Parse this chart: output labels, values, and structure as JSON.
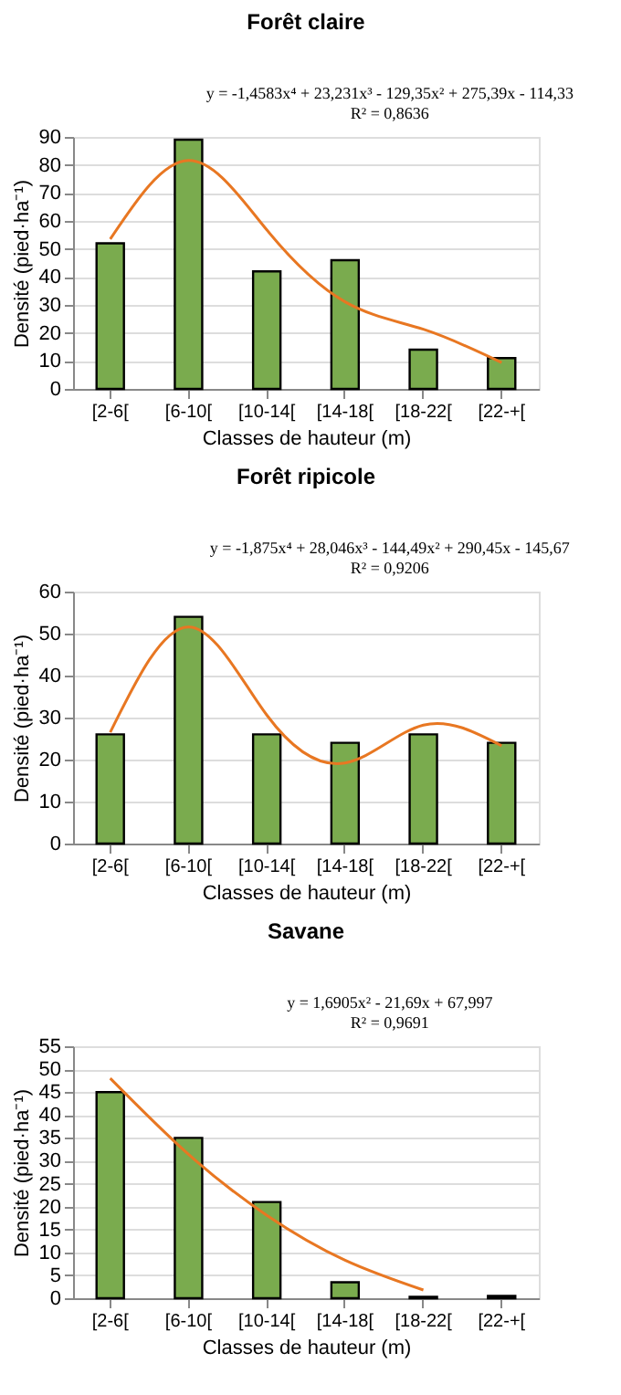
{
  "chart_data": [
    {
      "type": "bar",
      "title": "Forêt claire",
      "xlabel": "Classes de hauteur (m)",
      "ylabel": "Densité (pied·ha⁻¹)",
      "categories": [
        "[2-6[",
        "[6-10[",
        "[10-14[",
        "[14-18[",
        "[18-22[",
        "[22-+["
      ],
      "series": [
        {
          "color": "#7aab4e",
          "values": [
            52,
            89,
            42,
            46,
            14,
            11
          ]
        },
        {
          "type": "line",
          "color": "#e87722",
          "values": [
            53.5,
            81.6,
            56.8,
            31.1,
            21.3,
            9.4
          ]
        }
      ],
      "ylim": [
        0,
        90
      ],
      "yticks": [
        0,
        10,
        20,
        30,
        40,
        50,
        60,
        70,
        80,
        90
      ],
      "grid": "y",
      "annotations": [
        "y = -1,4583x⁴ + 23,231x³ - 129,35x² + 275,39x - 114,33",
        "R² = 0,8636"
      ]
    },
    {
      "type": "bar",
      "title": "Forêt ripicole",
      "xlabel": "Classes de hauteur (m)",
      "ylabel": "Densité (pied·ha⁻¹)",
      "categories": [
        "[2-6[",
        "[6-10[",
        "[10-14[",
        "[14-18[",
        "[18-22[",
        "[22-+["
      ],
      "series": [
        {
          "color": "#7aab4e",
          "values": [
            26,
            54,
            26,
            24,
            26,
            24
          ]
        },
        {
          "type": "line",
          "color": "#e87722",
          "values": [
            26.5,
            51.6,
            30.6,
            19.2,
            28.2,
            23.3
          ]
        }
      ],
      "ylim": [
        0,
        60
      ],
      "yticks": [
        0,
        10,
        20,
        30,
        40,
        50,
        60
      ],
      "grid": "y",
      "annotations": [
        "y = -1,875x⁴ + 28,046x³ - 144,49x² + 290,45x - 145,67",
        "R² = 0,9206"
      ]
    },
    {
      "type": "bar",
      "title": "Savane",
      "xlabel": "Classes de hauteur (m)",
      "ylabel": "Densité (pied·ha⁻¹)",
      "categories": [
        "[2-6[",
        "[6-10[",
        "[10-14[",
        "[14-18[",
        "[18-22[",
        "[22-+["
      ],
      "series": [
        {
          "color": "#7aab4e",
          "values": [
            45,
            35,
            21,
            3.5,
            0.3,
            0.5
          ]
        },
        {
          "type": "line",
          "color": "#e87722",
          "values": [
            48,
            31.4,
            18.1,
            8.3,
            1.8,
            null
          ]
        }
      ],
      "ylim": [
        0,
        55
      ],
      "yticks": [
        0,
        5,
        10,
        15,
        20,
        25,
        30,
        35,
        40,
        45,
        50,
        55
      ],
      "grid": "y",
      "annotations": [
        "y = 1,6905x² - 21,69x + 67,997",
        "R² = 0,9691"
      ]
    }
  ]
}
